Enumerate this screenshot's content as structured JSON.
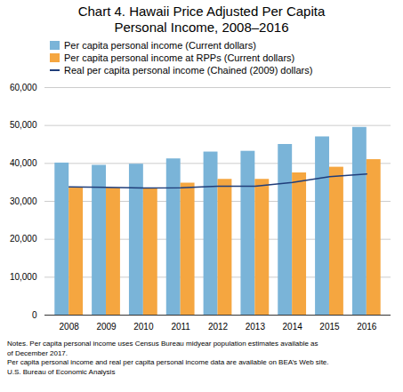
{
  "chart_data": {
    "type": "bar",
    "title": "Chart 4. Hawaii Price Adjusted Per Capita\nPersonal Income, 2008–2016",
    "categories": [
      "2008",
      "2009",
      "2010",
      "2011",
      "2012",
      "2013",
      "2014",
      "2015",
      "2016"
    ],
    "series": [
      {
        "name": "Per capita personal income (Current dollars)",
        "type": "bar",
        "color": "#7ab4d8",
        "values": [
          40100,
          39500,
          39800,
          41200,
          43000,
          43200,
          45000,
          47000,
          49500
        ]
      },
      {
        "name": "Per capita personal income at RPPs (Current dollars)",
        "type": "bar",
        "color": "#f5a640",
        "values": [
          33500,
          33500,
          33500,
          34800,
          35800,
          35800,
          37500,
          39000,
          41000
        ]
      },
      {
        "name": "Real per capita personal income (Chained (2009) dollars)",
        "type": "line",
        "color": "#1f3d7a",
        "values": [
          33800,
          33700,
          33500,
          33600,
          34000,
          34000,
          35000,
          36500,
          37200
        ]
      }
    ],
    "ylim": [
      0,
      60000
    ],
    "yticks": [
      0,
      {
        "value": 10000,
        "label": "10,000"
      },
      {
        "value": 20000,
        "label": "20,000"
      },
      {
        "value": 30000,
        "label": "30,000"
      },
      {
        "value": 40000,
        "label": "40,000"
      },
      {
        "value": 50000,
        "label": "50,000"
      },
      {
        "value": 60000,
        "label": "60,000"
      }
    ],
    "grid": true,
    "legend": "upper left",
    "annotations": [
      "Notes. Per capita personal income uses Census Bureau midyear population estimates available as",
      "of December 2017.",
      "Per capita personal income and real per capita personal income data are available on BEA’s Web site.",
      "U.S. Bureau of Economic Analysis"
    ]
  }
}
